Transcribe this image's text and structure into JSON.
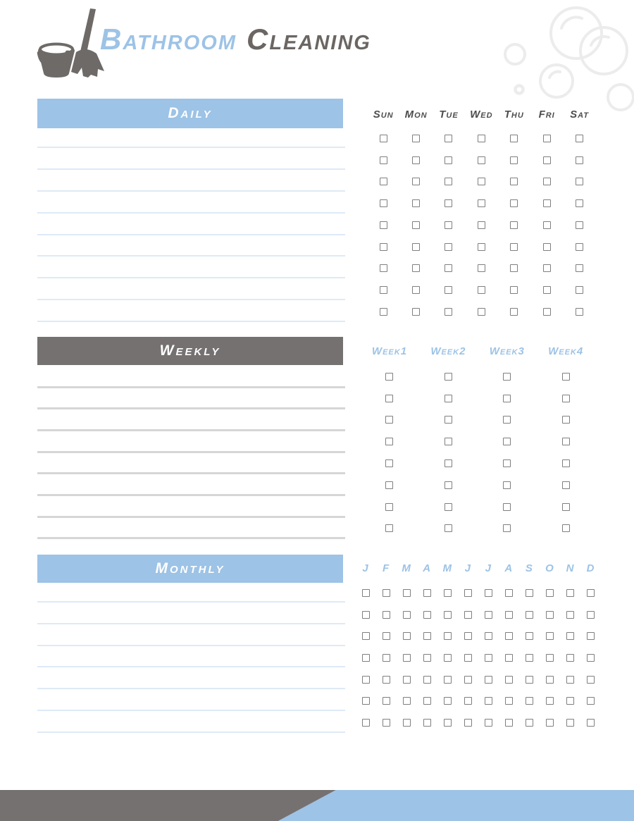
{
  "header": {
    "title_part1": "Bathroom",
    "title_part2": "Cleaning",
    "icon": "bucket-and-broom",
    "decoration": "soap-bubbles"
  },
  "sections": [
    {
      "id": "daily",
      "label": "Daily",
      "columns": [
        "Sun",
        "Mon",
        "Tue",
        "Wed",
        "Thu",
        "Fri",
        "Sat"
      ],
      "checkbox_rows": 9,
      "checkbox_state": "unchecked",
      "writing_lines": 9,
      "header_color": "#9DC3E6",
      "line_color": "#DEEAF6",
      "column_header_color": "#4D4D4D"
    },
    {
      "id": "weekly",
      "label": "Weekly",
      "columns": [
        "Week1",
        "Week2",
        "Week3",
        "Week4"
      ],
      "checkbox_rows": 8,
      "checkbox_state": "unchecked",
      "writing_lines": 8,
      "header_color": "#767171",
      "line_color": "#D6D6D6",
      "column_header_color": "#9DC3E6"
    },
    {
      "id": "monthly",
      "label": "Monthly",
      "columns": [
        "J",
        "F",
        "M",
        "A",
        "M",
        "J",
        "J",
        "A",
        "S",
        "O",
        "N",
        "D"
      ],
      "checkbox_rows": 7,
      "checkbox_state": "unchecked",
      "writing_lines": 7,
      "header_color": "#9DC3E6",
      "line_color": "#DEEAF6",
      "column_header_color": "#9DC3E6"
    }
  ],
  "colors": {
    "accent_blue": "#9DC3E6",
    "accent_gray": "#767171",
    "title_blue": "#9DC3E6",
    "title_gray": "#6B6663",
    "icon_gray": "#6E6A67",
    "bubble_gray": "#ECECEC",
    "checkbox_border": "#7F7F7F",
    "page_background": "#FFFFFF"
  },
  "footer": {
    "left_stripe_color": "#767171",
    "right_stripe_color": "#9DC3E6"
  }
}
